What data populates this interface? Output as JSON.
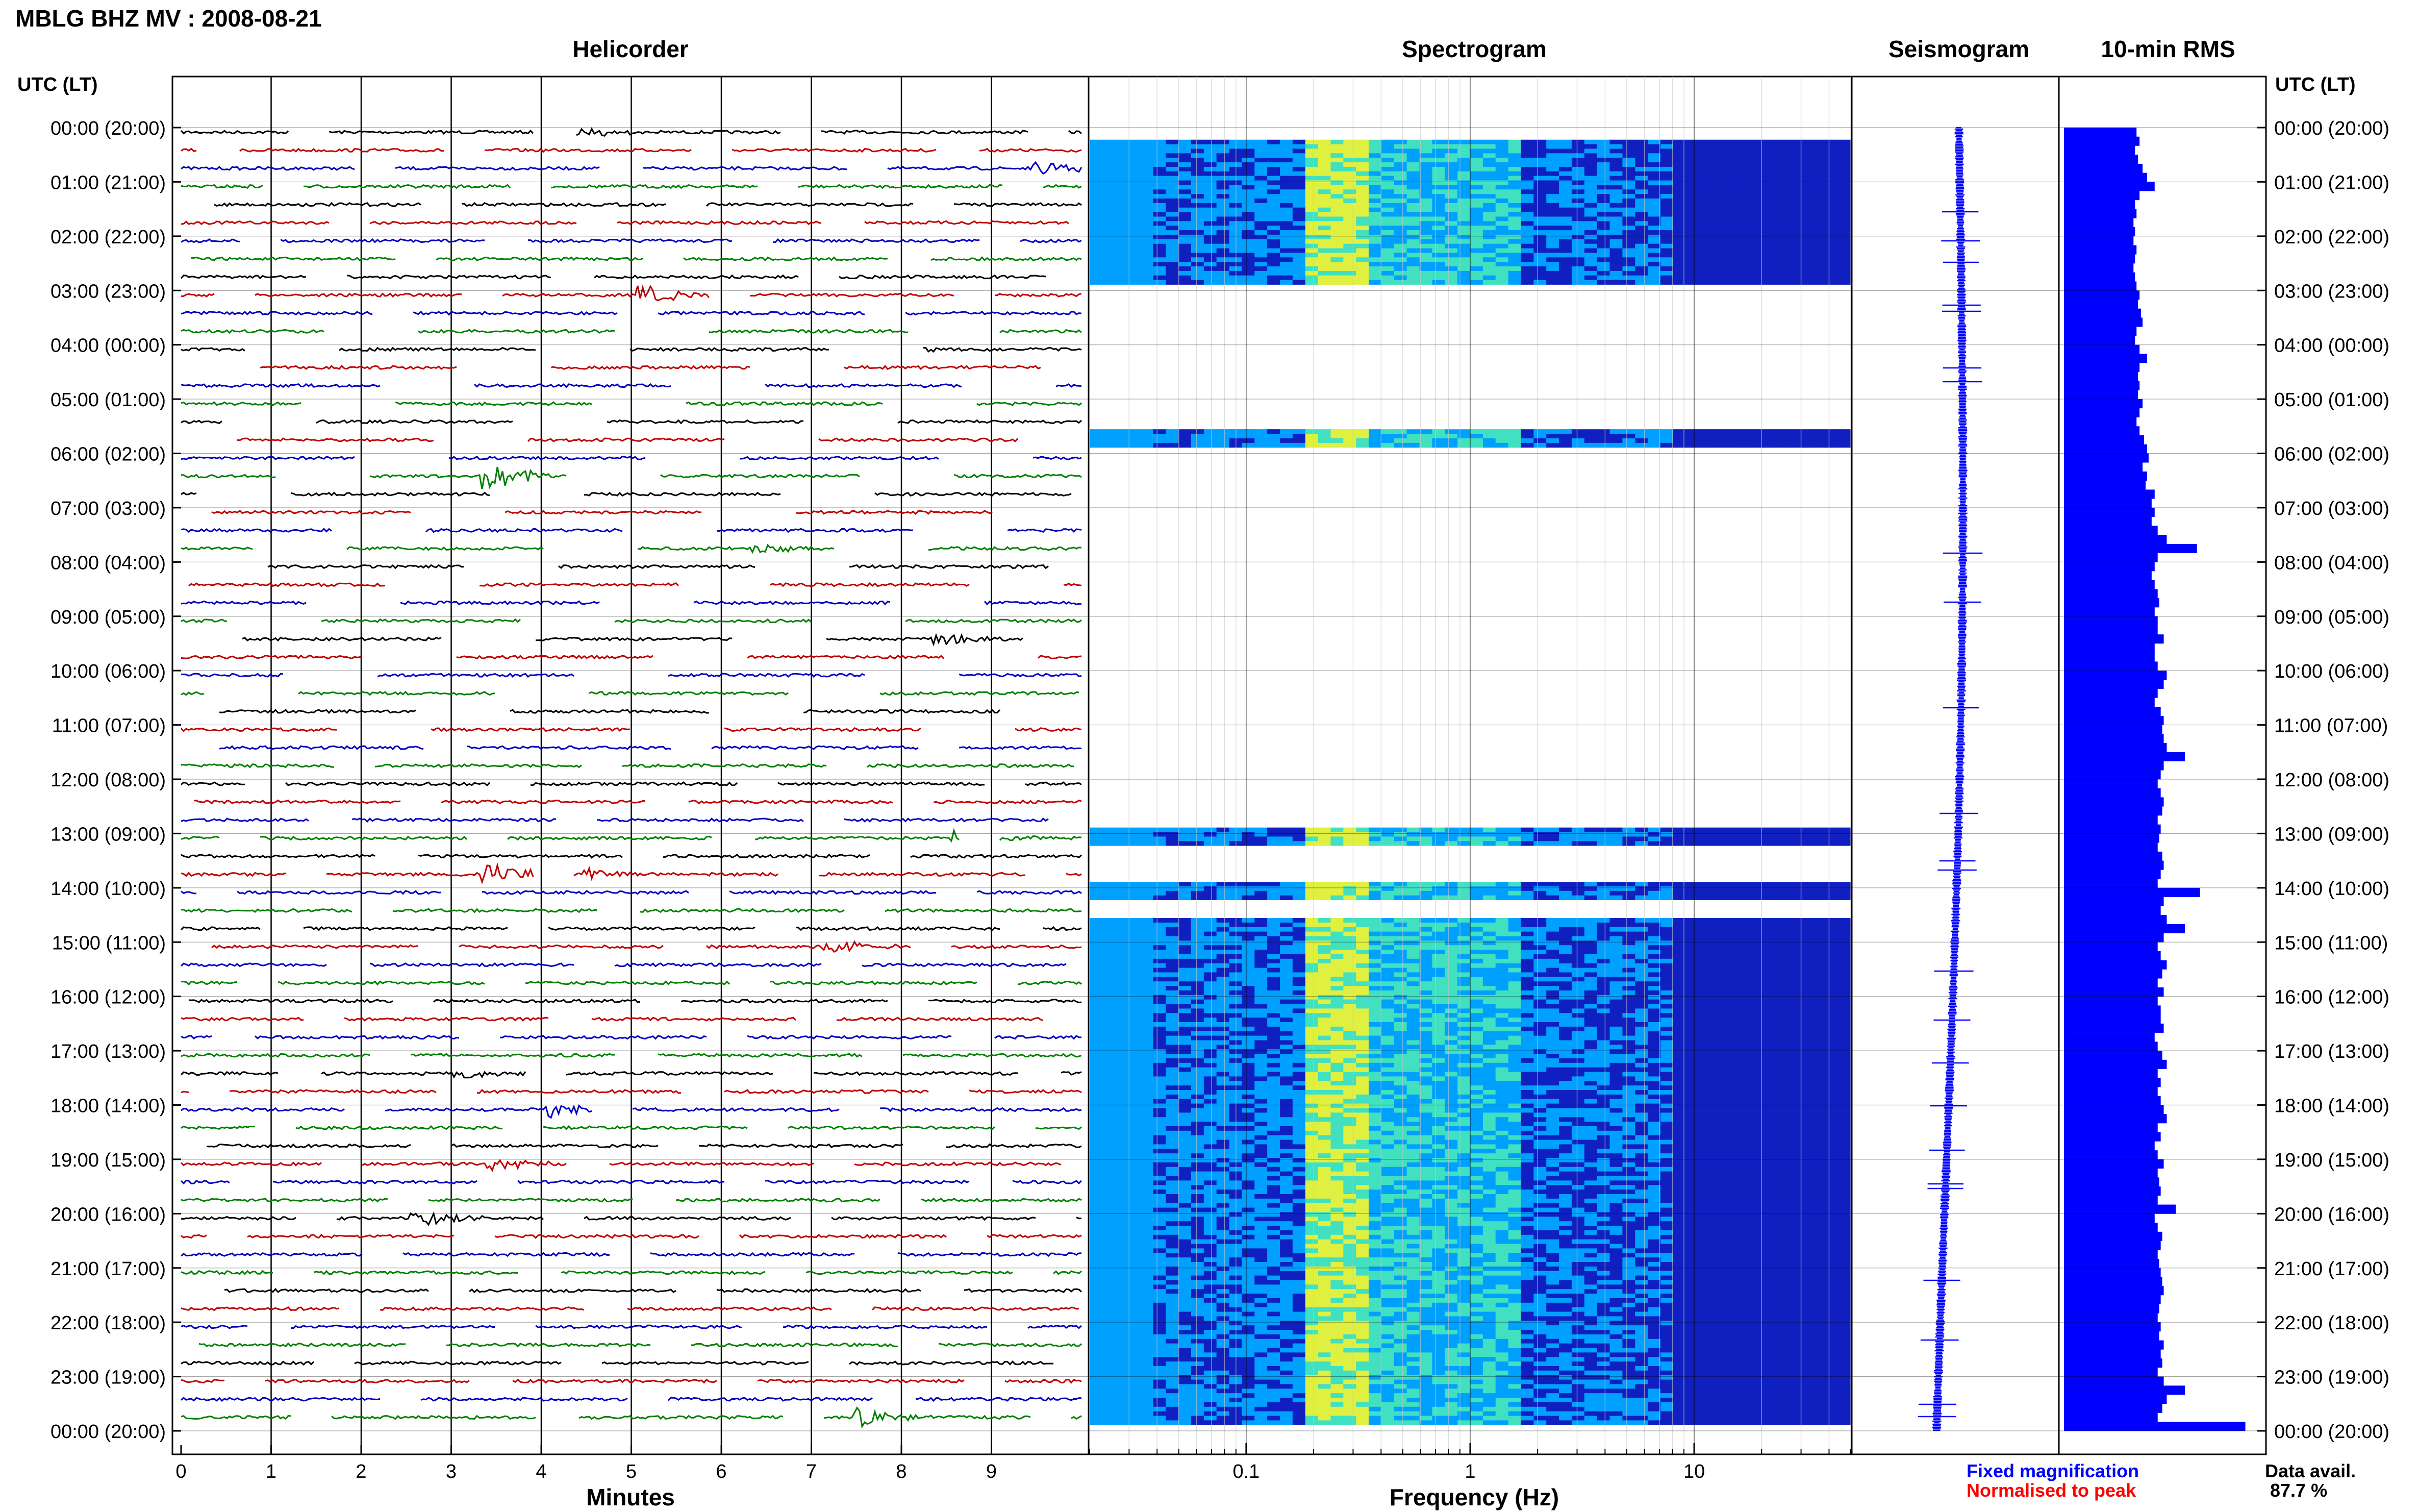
{
  "header": {
    "title": "MBLG BHZ MV : 2008-08-21",
    "utc_left": "UTC (LT)",
    "utc_right": "UTC (LT)"
  },
  "panels": {
    "helicorder": "Helicorder",
    "spectrogram": "Spectrogram",
    "seismogram": "Seismogram",
    "rms": "10-min RMS"
  },
  "time_labels": [
    "00:00 (20:00)",
    "01:00 (21:00)",
    "02:00 (22:00)",
    "03:00 (23:00)",
    "04:00 (00:00)",
    "05:00 (01:00)",
    "06:00 (02:00)",
    "07:00 (03:00)",
    "08:00 (04:00)",
    "09:00 (05:00)",
    "10:00 (06:00)",
    "11:00 (07:00)",
    "12:00 (08:00)",
    "13:00 (09:00)",
    "14:00 (10:00)",
    "15:00 (11:00)",
    "16:00 (12:00)",
    "17:00 (13:00)",
    "18:00 (14:00)",
    "19:00 (15:00)",
    "20:00 (16:00)",
    "21:00 (17:00)",
    "22:00 (18:00)",
    "23:00 (19:00)",
    "00:00 (20:00)"
  ],
  "footer": {
    "fixed": "Fixed magnification",
    "normalised": "Normalised to peak",
    "avail_label": "Data avail.",
    "avail_value": "87.7 %"
  },
  "colors": {
    "trace_cycle": [
      "#000000",
      "#c00000",
      "#0000c0",
      "#008000"
    ],
    "blue": "#0000ff",
    "red": "#ff0000"
  },
  "chart_data": [
    {
      "type": "line",
      "title": "Helicorder",
      "xlabel": "Minutes",
      "xlim": [
        0,
        10
      ],
      "x_ticks": [
        "0",
        "1",
        "2",
        "3",
        "4",
        "5",
        "6",
        "7",
        "8",
        "9"
      ],
      "rows": 72,
      "row_minutes": 20,
      "events": [
        {
          "row": 0,
          "minute": 4.5,
          "amp": 1.2
        },
        {
          "row": 2,
          "minute": 9.6,
          "amp": 2.2
        },
        {
          "row": 9,
          "minute": 5.2,
          "amp": 2.5
        },
        {
          "row": 12,
          "minute": 7.9,
          "amp": 1.3
        },
        {
          "row": 19,
          "minute": 3.5,
          "amp": 4.0
        },
        {
          "row": 23,
          "minute": 6.5,
          "amp": 1.5
        },
        {
          "row": 28,
          "minute": 8.5,
          "amp": 1.4
        },
        {
          "row": 39,
          "minute": 8.7,
          "amp": 3.2
        },
        {
          "row": 41,
          "minute": 3.5,
          "amp": 2.8
        },
        {
          "row": 41,
          "minute": 4.3,
          "amp": 3.0
        },
        {
          "row": 45,
          "minute": 7.3,
          "amp": 1.8
        },
        {
          "row": 52,
          "minute": 3.2,
          "amp": 1.5
        },
        {
          "row": 54,
          "minute": 4.2,
          "amp": 2.0
        },
        {
          "row": 57,
          "minute": 3.5,
          "amp": 2.2
        },
        {
          "row": 60,
          "minute": 2.7,
          "amp": 2.2
        },
        {
          "row": 71,
          "minute": 7.6,
          "amp": 3.0
        }
      ]
    },
    {
      "type": "heatmap",
      "title": "Spectrogram",
      "xlabel": "Frequency (Hz)",
      "xscale": "log",
      "xlim": [
        0.02,
        50
      ],
      "x_ticks": [
        0.1,
        1,
        10
      ],
      "x_tick_labels": [
        "0.1",
        "1",
        "10"
      ],
      "data_rows": [
        [
          1,
          4
        ],
        [
          4,
          5
        ],
        [
          5,
          6
        ],
        [
          6,
          8
        ],
        [
          8,
          9
        ],
        [
          17,
          18
        ],
        [
          17,
          18
        ],
        [
          39,
          40
        ],
        [
          42,
          43
        ],
        [
          44,
          71
        ],
        [
          71,
          72
        ]
      ],
      "colormap": [
        "#1020c0",
        "#00a0ff",
        "#40e0c0",
        "#e0f040"
      ]
    },
    {
      "type": "line",
      "title": "Seismogram",
      "normalised": false
    },
    {
      "type": "bar",
      "title": "10-min RMS",
      "orientation": "horizontal",
      "bins": 144,
      "values": [
        0.48,
        0.5,
        0.47,
        0.49,
        0.52,
        0.55,
        0.6,
        0.5,
        0.47,
        0.48,
        0.46,
        0.47,
        0.46,
        0.48,
        0.47,
        0.46,
        0.47,
        0.48,
        0.5,
        0.49,
        0.51,
        0.52,
        0.48,
        0.47,
        0.5,
        0.55,
        0.5,
        0.49,
        0.5,
        0.49,
        0.52,
        0.5,
        0.48,
        0.5,
        0.53,
        0.55,
        0.56,
        0.52,
        0.55,
        0.54,
        0.6,
        0.58,
        0.6,
        0.58,
        0.62,
        0.68,
        0.88,
        0.62,
        0.6,
        0.58,
        0.6,
        0.62,
        0.63,
        0.6,
        0.62,
        0.62,
        0.66,
        0.6,
        0.6,
        0.62,
        0.68,
        0.66,
        0.62,
        0.6,
        0.64,
        0.66,
        0.65,
        0.66,
        0.68,
        0.8,
        0.66,
        0.64,
        0.62,
        0.64,
        0.66,
        0.65,
        0.62,
        0.64,
        0.63,
        0.62,
        0.65,
        0.66,
        0.64,
        0.62,
        0.9,
        0.66,
        0.64,
        0.68,
        0.8,
        0.66,
        0.62,
        0.64,
        0.68,
        0.65,
        0.62,
        0.66,
        0.62,
        0.64,
        0.64,
        0.66,
        0.6,
        0.62,
        0.65,
        0.68,
        0.62,
        0.64,
        0.62,
        0.64,
        0.66,
        0.68,
        0.62,
        0.64,
        0.6,
        0.62,
        0.66,
        0.62,
        0.63,
        0.64,
        0.62,
        0.74,
        0.6,
        0.62,
        0.65,
        0.64,
        0.62,
        0.63,
        0.64,
        0.65,
        0.66,
        0.64,
        0.63,
        0.62,
        0.64,
        0.63,
        0.66,
        0.64,
        0.65,
        0.62,
        0.66,
        0.8,
        0.68,
        0.65,
        0.62,
        1.2
      ],
      "xlim": [
        0,
        1.35
      ]
    }
  ]
}
